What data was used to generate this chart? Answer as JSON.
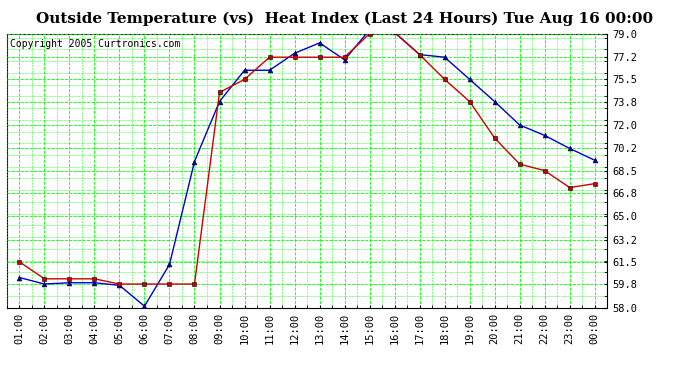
{
  "title": "Outside Temperature (vs)  Heat Index (Last 24 Hours) Tue Aug 16 00:00",
  "copyright": "Copyright 2005 Curtronics.com",
  "x_labels": [
    "01:00",
    "02:00",
    "03:00",
    "04:00",
    "05:00",
    "06:00",
    "07:00",
    "08:00",
    "09:00",
    "10:00",
    "11:00",
    "12:00",
    "13:00",
    "14:00",
    "15:00",
    "16:00",
    "17:00",
    "18:00",
    "19:00",
    "20:00",
    "21:00",
    "22:00",
    "23:00",
    "00:00"
  ],
  "temp_blue": [
    60.3,
    59.8,
    59.9,
    59.9,
    59.7,
    58.1,
    61.3,
    69.2,
    73.8,
    76.2,
    76.2,
    77.5,
    78.3,
    77.0,
    79.3,
    79.1,
    77.4,
    77.2,
    75.5,
    73.8,
    72.0,
    71.2,
    70.2,
    69.3
  ],
  "heat_red": [
    61.5,
    60.2,
    60.2,
    60.2,
    59.8,
    59.8,
    59.8,
    59.8,
    74.5,
    75.5,
    77.2,
    77.2,
    77.2,
    77.2,
    79.0,
    79.1,
    77.4,
    75.5,
    73.8,
    71.0,
    69.0,
    68.5,
    67.2,
    67.5
  ],
  "bg_color": "#ffffff",
  "plot_bg": "#ffffff",
  "grid_color": "#00ff00",
  "line_blue": "#0000cc",
  "line_red": "#cc0000",
  "marker_black": "#000000",
  "ylim_min": 58.0,
  "ylim_max": 79.0,
  "ytick_values": [
    58.0,
    59.8,
    61.5,
    63.2,
    65.0,
    66.8,
    68.5,
    70.2,
    72.0,
    73.8,
    75.5,
    77.2,
    79.0
  ],
  "title_fontsize": 11,
  "copyright_fontsize": 7,
  "tick_fontsize": 7.5
}
